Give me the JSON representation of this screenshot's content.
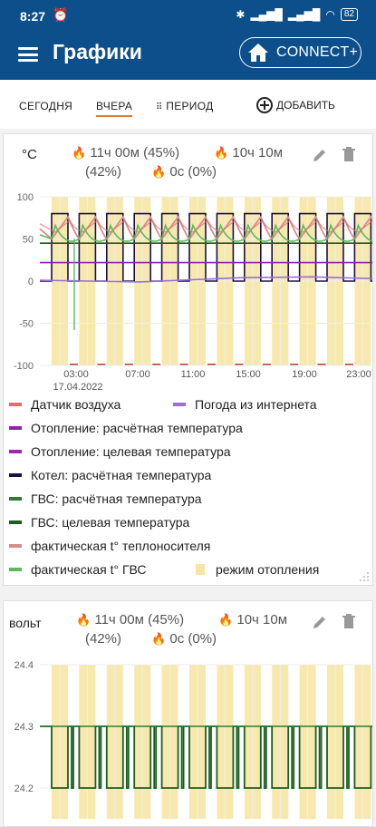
{
  "status": {
    "time": "8:27",
    "battery": "82"
  },
  "appbar": {
    "title": "Графики",
    "connect_label": "CONNECT+"
  },
  "tabs": {
    "today": "СЕГОДНЯ",
    "yesterday": "ВЧЕРА",
    "period": "ПЕРИОД",
    "add": "ДОБАВИТЬ"
  },
  "card1": {
    "unit": "°C",
    "stat1": "11ч 00м (45%)",
    "stat2": "10ч 10м",
    "stat3": "(42%)",
    "stat4": "0с (0%)",
    "legend": [
      {
        "label": "Датчик воздуха",
        "color": "#e07070"
      },
      {
        "label": "Погода из интернета",
        "color": "#9b6fd6"
      },
      {
        "label": "Отопление: расчётная температура",
        "color": "#8e24aa"
      },
      {
        "label": "Отопление: целевая температура",
        "color": "#9c27b0"
      },
      {
        "label": "Котел: расчётная температура",
        "color": "#1a1046"
      },
      {
        "label": "ГВС: расчётная температура",
        "color": "#2e7d32"
      },
      {
        "label": "ГВС: целевая температура",
        "color": "#1b5e20"
      },
      {
        "label": "фактическая t° теплоносителя",
        "color": "#d98b8b"
      },
      {
        "label": "фактическая t° ГВС",
        "color": "#5cb85c"
      },
      {
        "label": "режим отопления",
        "color": "#f5e6a8"
      }
    ]
  },
  "card2": {
    "unit": "вольт",
    "stat1": "11ч 00м (45%)",
    "stat2": "10ч 10м",
    "stat3": "(42%)",
    "stat4": "0с (0%)"
  },
  "chart_data": [
    {
      "type": "line",
      "yticks": [
        "100",
        "50",
        "0",
        "-50",
        "-100"
      ],
      "ylim": [
        -100,
        100
      ],
      "xticks": [
        "03:00",
        "07:00",
        "11:00",
        "15:00",
        "19:00",
        "23:00"
      ],
      "xdate": "17.04.2022",
      "series": [
        {
          "name": "Датчик воздуха",
          "values": [
            60,
            65
          ]
        },
        {
          "name": "Погода из интернета",
          "values": [
            2,
            5
          ]
        },
        {
          "name": "Отопление: расчётная температура",
          "values": [
            22,
            22
          ]
        },
        {
          "name": "Котел: расчётная температура",
          "values": [
            0,
            80
          ]
        },
        {
          "name": "ГВС: целевая температура",
          "values": [
            45,
            45
          ]
        },
        {
          "name": "фактическая t° теплоносителя",
          "values": [
            50,
            75
          ]
        },
        {
          "name": "фактическая t° ГВС",
          "values": [
            -58,
            65
          ]
        }
      ]
    },
    {
      "type": "line",
      "yticks": [
        "24.4",
        "24.3",
        "24.2"
      ],
      "ylim": [
        24.15,
        24.4
      ]
    }
  ]
}
